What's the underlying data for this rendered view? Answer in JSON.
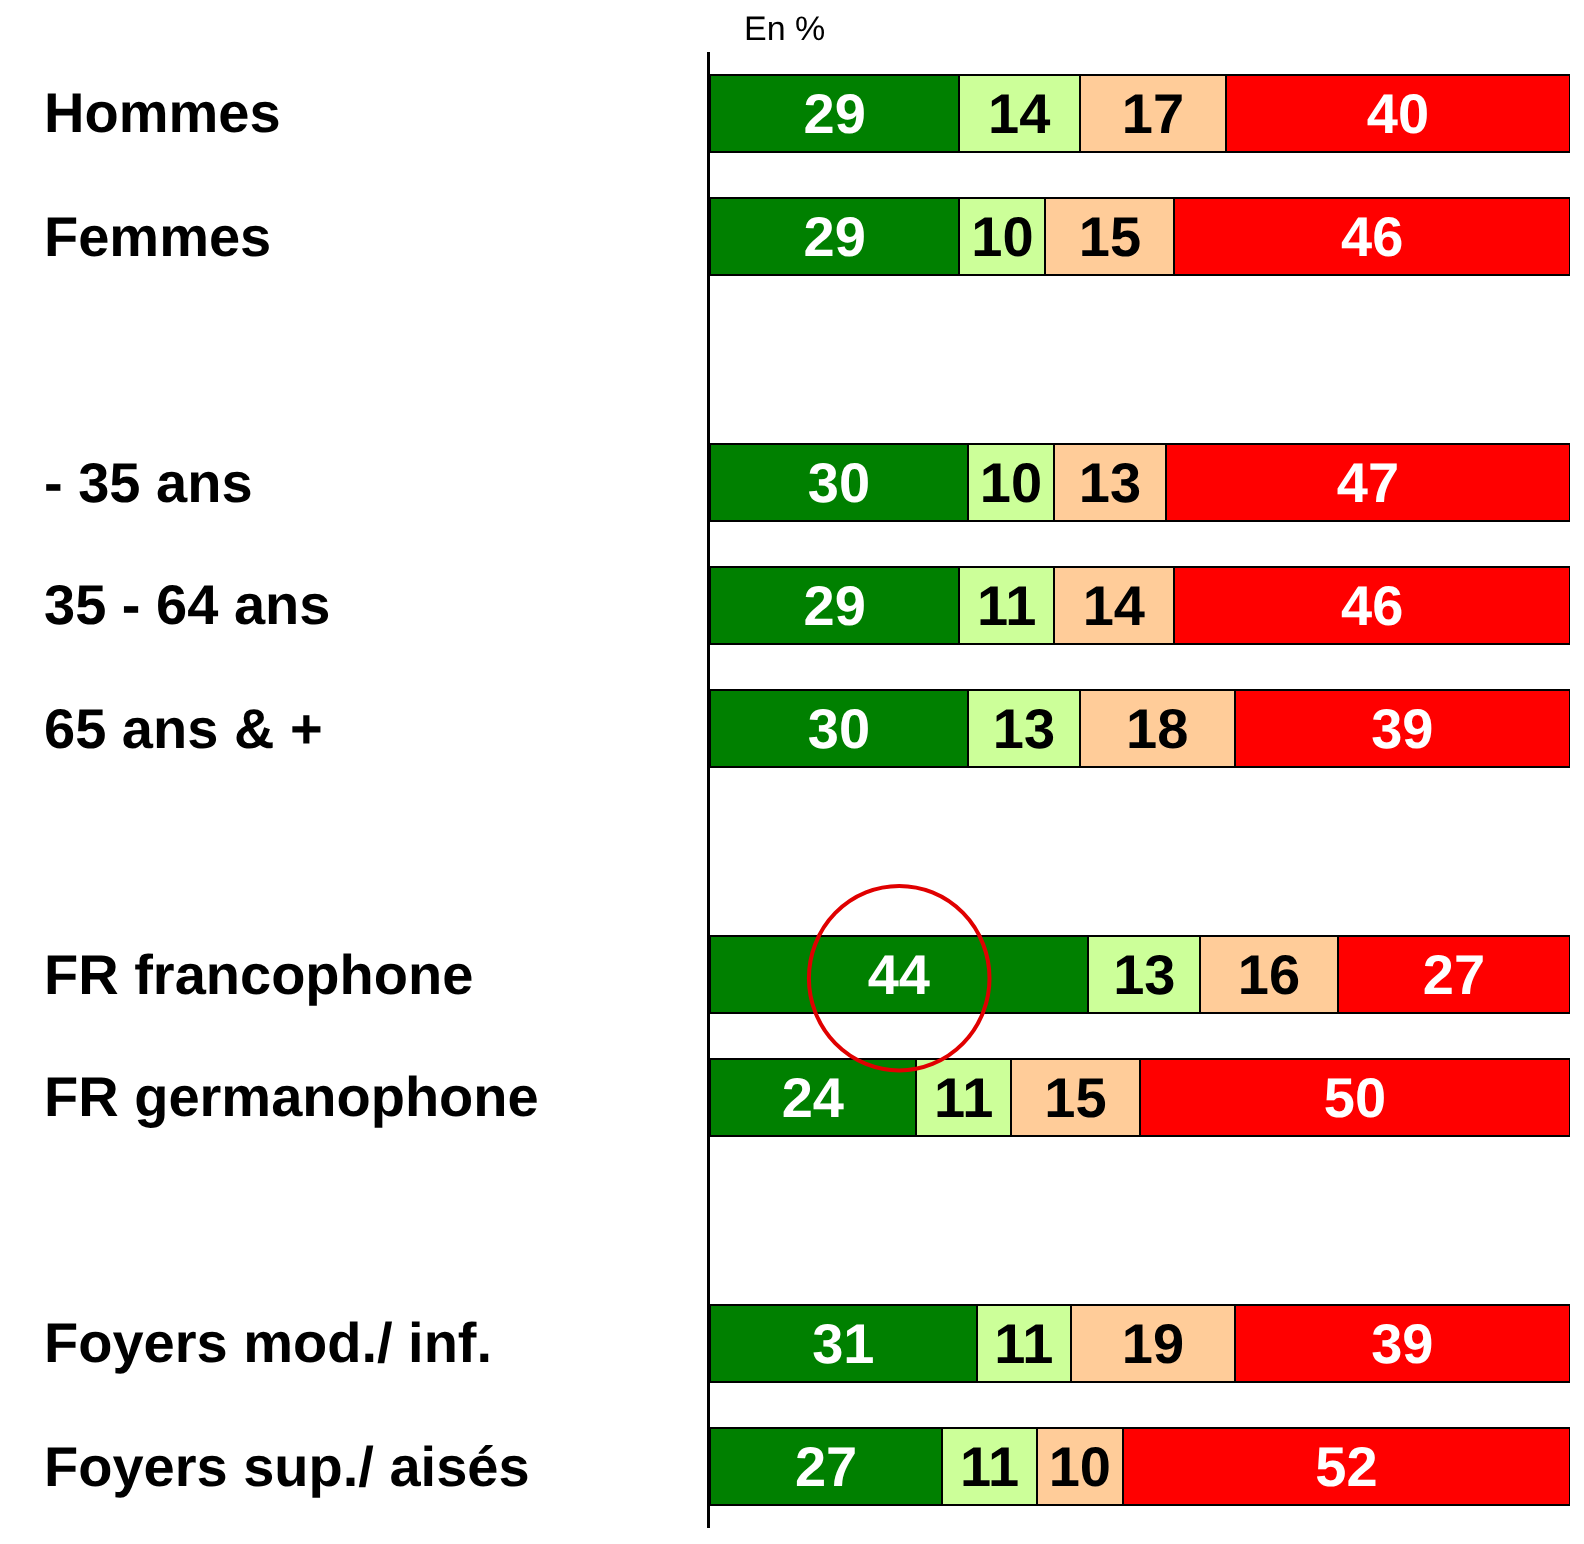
{
  "chart_data": {
    "type": "bar",
    "orientation": "horizontal",
    "stacked": true,
    "data_labels": true,
    "categories": [
      "Hommes",
      "Femmes",
      null,
      "- 35 ans",
      "35 - 64 ans",
      "65 ans & +",
      null,
      "FR francophone",
      "FR germanophone",
      null,
      "Foyers mod./ inf.",
      "Foyers sup./ aisés"
    ],
    "annotations": [
      "En %"
    ],
    "series": [
      {
        "color": "#008000",
        "values": [
          29,
          29,
          null,
          30,
          29,
          30,
          null,
          44,
          24,
          null,
          31,
          27
        ]
      },
      {
        "color": "#ccff99",
        "values": [
          14,
          10,
          null,
          10,
          11,
          13,
          null,
          13,
          11,
          null,
          11,
          11
        ]
      },
      {
        "color": "#ffcc99",
        "values": [
          17,
          15,
          null,
          13,
          14,
          18,
          null,
          16,
          15,
          null,
          19,
          10
        ]
      },
      {
        "color": "#ff0000",
        "values": [
          40,
          46,
          null,
          47,
          46,
          39,
          null,
          27,
          50,
          null,
          39,
          52
        ]
      }
    ]
  }
}
